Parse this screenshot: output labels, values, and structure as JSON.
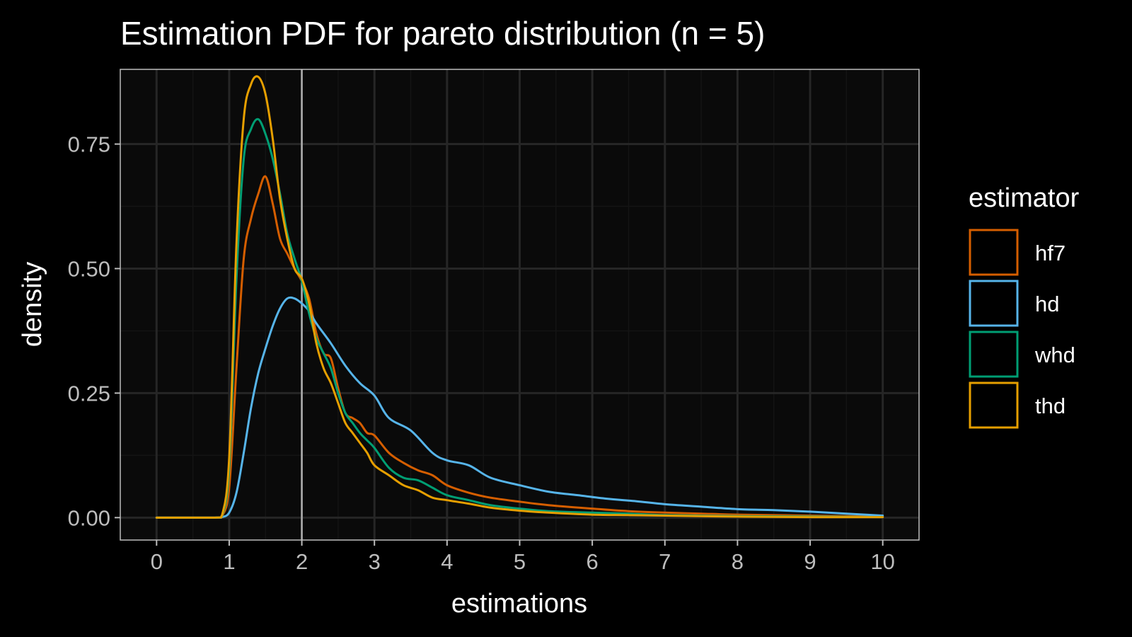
{
  "colors": {
    "background": "#000000",
    "panel": "#0a0a0a",
    "grid_major": "#262626",
    "grid_minor": "#141414",
    "panel_border": "#bdbdbd",
    "reference_line": "#b0b0b0",
    "text": "#ffffff",
    "tick_text": "#bdbdbd"
  },
  "chart_data": {
    "type": "line",
    "title": "Estimation PDF for pareto distribution (n = 5)",
    "xlabel": "estimations",
    "ylabel": "density",
    "xlim": [
      -0.5,
      10.5
    ],
    "ylim": [
      -0.045,
      0.9
    ],
    "x_ticks": [
      0,
      1,
      2,
      3,
      4,
      5,
      6,
      7,
      8,
      9,
      10
    ],
    "x_tick_labels": [
      "0",
      "1",
      "2",
      "3",
      "4",
      "5",
      "6",
      "7",
      "8",
      "9",
      "10"
    ],
    "y_ticks": [
      0,
      0.25,
      0.5,
      0.75
    ],
    "y_tick_labels": [
      "0.00",
      "0.25",
      "0.50",
      "0.75"
    ],
    "grid": true,
    "reference_line_x": 2,
    "legend": {
      "title": "estimator",
      "position": "right"
    },
    "series": [
      {
        "name": "hf7",
        "color": "#d55e00",
        "x": [
          0,
          0.8,
          0.9,
          1.0,
          1.1,
          1.2,
          1.3,
          1.4,
          1.5,
          1.6,
          1.7,
          1.8,
          1.9,
          2.0,
          2.1,
          2.2,
          2.3,
          2.4,
          2.5,
          2.6,
          2.7,
          2.8,
          2.9,
          3.0,
          3.2,
          3.4,
          3.6,
          3.8,
          4.0,
          4.3,
          4.6,
          5.0,
          5.4,
          6.0,
          6.5,
          7.0,
          7.5,
          8.0,
          9.0,
          10.0
        ],
        "y": [
          0,
          0,
          0.003,
          0.06,
          0.3,
          0.52,
          0.6,
          0.65,
          0.685,
          0.63,
          0.56,
          0.53,
          0.5,
          0.475,
          0.44,
          0.37,
          0.33,
          0.32,
          0.26,
          0.21,
          0.2,
          0.19,
          0.17,
          0.165,
          0.13,
          0.11,
          0.095,
          0.085,
          0.065,
          0.05,
          0.04,
          0.032,
          0.025,
          0.018,
          0.013,
          0.01,
          0.008,
          0.006,
          0.004,
          0.002
        ]
      },
      {
        "name": "hd",
        "color": "#56b4e9",
        "x": [
          0,
          0.8,
          0.9,
          1.0,
          1.1,
          1.2,
          1.3,
          1.4,
          1.5,
          1.6,
          1.7,
          1.8,
          1.9,
          2.0,
          2.1,
          2.2,
          2.4,
          2.6,
          2.8,
          3.0,
          3.2,
          3.5,
          3.8,
          4.0,
          4.3,
          4.6,
          5.0,
          5.4,
          5.8,
          6.2,
          6.6,
          7.0,
          7.5,
          8.0,
          8.5,
          9.0,
          9.5,
          10.0
        ],
        "y": [
          0,
          0,
          0.001,
          0.01,
          0.05,
          0.13,
          0.22,
          0.29,
          0.34,
          0.385,
          0.42,
          0.44,
          0.44,
          0.43,
          0.415,
          0.39,
          0.35,
          0.305,
          0.27,
          0.245,
          0.2,
          0.175,
          0.13,
          0.115,
          0.105,
          0.08,
          0.065,
          0.052,
          0.045,
          0.038,
          0.033,
          0.027,
          0.022,
          0.017,
          0.015,
          0.012,
          0.008,
          0.004
        ]
      },
      {
        "name": "whd",
        "color": "#009e73",
        "x": [
          0,
          0.8,
          0.9,
          1.0,
          1.1,
          1.2,
          1.3,
          1.4,
          1.5,
          1.6,
          1.7,
          1.8,
          1.9,
          2.0,
          2.1,
          2.2,
          2.3,
          2.4,
          2.5,
          2.6,
          2.7,
          2.8,
          2.9,
          3.0,
          3.2,
          3.4,
          3.6,
          3.8,
          4.0,
          4.3,
          4.6,
          5.0,
          5.4,
          6.0,
          6.5,
          7.0,
          8.0,
          9.0,
          10.0
        ],
        "y": [
          0,
          0,
          0.003,
          0.1,
          0.48,
          0.72,
          0.78,
          0.8,
          0.77,
          0.72,
          0.65,
          0.57,
          0.52,
          0.475,
          0.41,
          0.36,
          0.33,
          0.3,
          0.25,
          0.21,
          0.19,
          0.17,
          0.155,
          0.14,
          0.1,
          0.08,
          0.075,
          0.06,
          0.045,
          0.035,
          0.025,
          0.018,
          0.013,
          0.01,
          0.008,
          0.005,
          0.003,
          0.002,
          0.001
        ]
      },
      {
        "name": "thd",
        "color": "#e69f00",
        "x": [
          0,
          0.8,
          0.9,
          1.0,
          1.1,
          1.2,
          1.3,
          1.4,
          1.5,
          1.6,
          1.7,
          1.8,
          1.9,
          2.0,
          2.1,
          2.2,
          2.3,
          2.4,
          2.5,
          2.6,
          2.7,
          2.8,
          2.9,
          3.0,
          3.2,
          3.4,
          3.6,
          3.8,
          4.0,
          4.3,
          4.6,
          5.0,
          5.4,
          6.0,
          6.5,
          7.0,
          8.0,
          9.0,
          10.0
        ],
        "y": [
          0,
          0,
          0.004,
          0.12,
          0.55,
          0.8,
          0.87,
          0.885,
          0.85,
          0.76,
          0.64,
          0.56,
          0.5,
          0.48,
          0.43,
          0.35,
          0.3,
          0.27,
          0.23,
          0.19,
          0.17,
          0.15,
          0.13,
          0.105,
          0.085,
          0.065,
          0.055,
          0.04,
          0.035,
          0.028,
          0.02,
          0.014,
          0.01,
          0.006,
          0.005,
          0.004,
          0.002,
          0.001,
          0.001
        ]
      }
    ]
  }
}
